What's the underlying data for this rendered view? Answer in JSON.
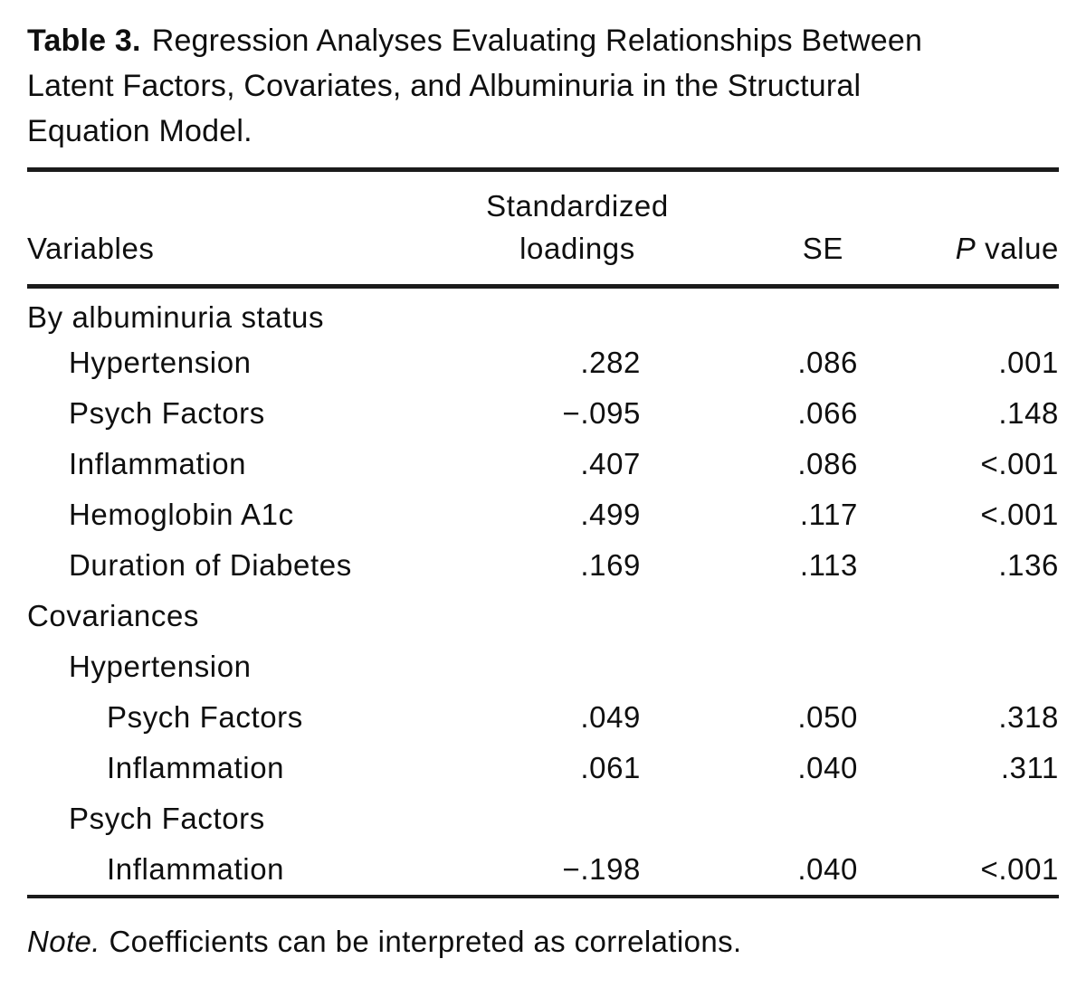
{
  "title": {
    "label": "Table 3.",
    "line1": "Regression Analyses Evaluating Relationships Between",
    "line2": "Latent Factors, Covariates, and Albuminuria in the Structural",
    "line3": "Equation Model."
  },
  "table": {
    "headers": {
      "variables": "Variables",
      "loadings_line1": "Standardized",
      "loadings_line2": "loadings",
      "se": "SE",
      "p_italic": "P",
      "p_rest": "value"
    },
    "rows": [
      {
        "label": "By albuminuria status",
        "indent": 0,
        "loading": "",
        "se": "",
        "p": ""
      },
      {
        "label": "Hypertension",
        "indent": 1,
        "loading": ".282",
        "se": ".086",
        "p": ".001"
      },
      {
        "label": "Psych Factors",
        "indent": 1,
        "loading": "−.095",
        "se": ".066",
        "p": ".148"
      },
      {
        "label": "Inflammation",
        "indent": 1,
        "loading": ".407",
        "se": ".086",
        "p": "<.001"
      },
      {
        "label": "Hemoglobin A1c",
        "indent": 1,
        "loading": ".499",
        "se": ".117",
        "p": "<.001"
      },
      {
        "label": "Duration of Diabetes",
        "indent": 1,
        "loading": ".169",
        "se": ".113",
        "p": ".136"
      },
      {
        "label": "Covariances",
        "indent": 0,
        "loading": "",
        "se": "",
        "p": ""
      },
      {
        "label": "Hypertension",
        "indent": 1,
        "loading": "",
        "se": "",
        "p": ""
      },
      {
        "label": "Psych Factors",
        "indent": 2,
        "loading": ".049",
        "se": ".050",
        "p": ".318"
      },
      {
        "label": "Inflammation",
        "indent": 2,
        "loading": ".061",
        "se": ".040",
        "p": ".311"
      },
      {
        "label": "Psych Factors",
        "indent": 1,
        "loading": "",
        "se": "",
        "p": ""
      },
      {
        "label": "Inflammation",
        "indent": 2,
        "loading": "−.198",
        "se": ".040",
        "p": "<.001"
      }
    ]
  },
  "note": {
    "label": "Note.",
    "text": "Coefficients can be interpreted as correlations."
  },
  "colors": {
    "text": "#0f0f0f",
    "rule": "#1b1b1b",
    "background": "#ffffff"
  }
}
